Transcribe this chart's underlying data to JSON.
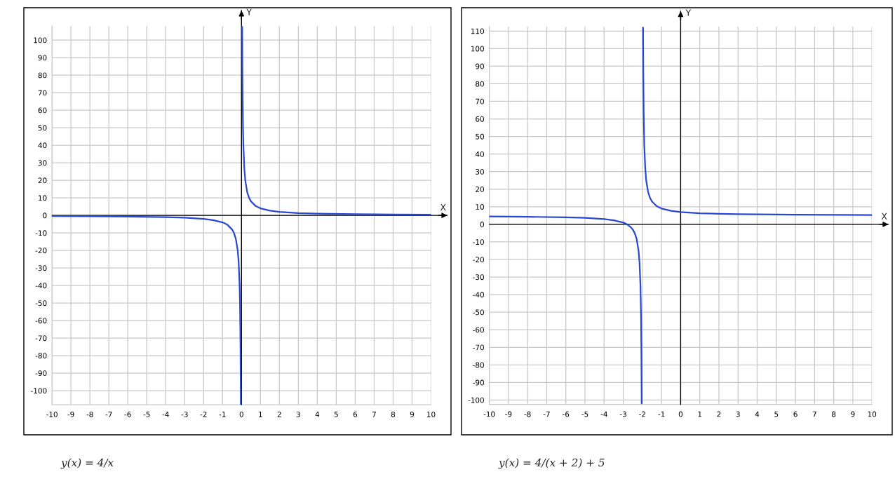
{
  "chart_data": [
    {
      "type": "line",
      "xlabel": "X",
      "ylabel": "Y",
      "xlim": [
        -10,
        10
      ],
      "ylim": [
        -108,
        108
      ],
      "xticks": [
        -10,
        -9,
        -8,
        -7,
        -6,
        -5,
        -4,
        -3,
        -2,
        -1,
        0,
        1,
        2,
        3,
        4,
        5,
        6,
        7,
        8,
        9,
        10
      ],
      "yticks": [
        -100,
        -90,
        -80,
        -70,
        -60,
        -50,
        -40,
        -30,
        -20,
        -10,
        0,
        10,
        20,
        30,
        40,
        50,
        60,
        70,
        80,
        90,
        100
      ],
      "grid": true,
      "series": [
        {
          "color": "#2a47d2",
          "x": [
            -10,
            -8,
            -6,
            -4,
            -3,
            -2,
            -1.5,
            -1,
            -0.75,
            -0.5,
            -0.4,
            -0.3,
            -0.2,
            -0.15,
            -0.1,
            -0.08,
            -0.06,
            -0.05,
            -0.04,
            -0.037,
            0,
            0.037,
            0.04,
            0.05,
            0.06,
            0.08,
            0.1,
            0.15,
            0.2,
            0.3,
            0.4,
            0.5,
            0.75,
            1,
            1.5,
            2,
            3,
            4,
            6,
            8,
            10
          ],
          "values": [
            -0.4,
            -0.5,
            -0.7,
            -1,
            -1.3,
            -2,
            -2.7,
            -4,
            -5.3,
            -8,
            -10,
            -13.3,
            -20,
            -26.7,
            -40,
            -50,
            -66.7,
            -80,
            -100,
            -108,
            null,
            108,
            100,
            80,
            66.7,
            50,
            40,
            26.7,
            20,
            13.3,
            10,
            8,
            5.3,
            4,
            2.7,
            2,
            1.3,
            1,
            0.7,
            0.5,
            0.4
          ]
        }
      ],
      "annotations": [
        "y(x) = 4/x"
      ]
    },
    {
      "type": "line",
      "xlabel": "X",
      "ylabel": "Y",
      "xlim": [
        -10,
        10
      ],
      "ylim": [
        -102.5,
        112.5
      ],
      "xticks": [
        -10,
        -9,
        -8,
        -7,
        -6,
        -5,
        -4,
        -3,
        -2,
        -1,
        0,
        1,
        2,
        3,
        4,
        5,
        6,
        7,
        8,
        9,
        10
      ],
      "yticks": [
        -100,
        -90,
        -80,
        -70,
        -60,
        -50,
        -40,
        -30,
        -20,
        -10,
        0,
        10,
        20,
        30,
        40,
        50,
        60,
        70,
        80,
        90,
        100,
        110
      ],
      "grid": true,
      "series": [
        {
          "color": "#2a47d2",
          "x": [
            -10,
            -8,
            -6,
            -5,
            -4,
            -3.5,
            -3,
            -2.8,
            -2.6,
            -2.5,
            -2.4,
            -2.3,
            -2.2,
            -2.15,
            -2.1,
            -2.07,
            -2.05,
            -2.04,
            -2.037,
            -2,
            -1.963,
            -1.96,
            -1.95,
            -1.93,
            -1.9,
            -1.85,
            -1.8,
            -1.7,
            -1.6,
            -1.5,
            -1.25,
            -1,
            -0.5,
            0,
            1,
            2,
            3,
            4,
            6,
            8,
            10
          ],
          "values": [
            4.5,
            4.3,
            4,
            3.7,
            3,
            2.3,
            1,
            0,
            -1.7,
            -3,
            -5,
            -8.3,
            -15,
            -21.7,
            -35,
            -52.1,
            -75,
            -95,
            -102,
            null,
            112,
            105,
            85,
            62.1,
            45,
            31.7,
            25,
            18.3,
            15,
            13,
            10.3,
            9,
            7.7,
            7,
            6.3,
            6,
            5.8,
            5.7,
            5.5,
            5.4,
            5.3
          ]
        }
      ],
      "annotations": [
        "y(x) = 4/(x + 2) + 5"
      ]
    }
  ]
}
